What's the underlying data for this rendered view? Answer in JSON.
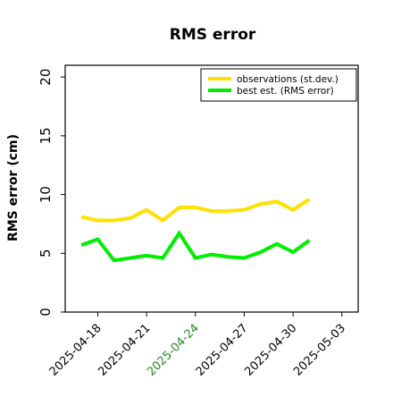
{
  "chart_data": {
    "type": "line",
    "title": "RMS error",
    "xlabel": "",
    "ylabel": "RMS error (cm)",
    "ylim": [
      0,
      21
    ],
    "yticks": [
      0,
      5,
      10,
      15,
      20
    ],
    "xlim": [
      "2025-04-16",
      "2025-05-04"
    ],
    "xticks": [
      "2025-04-18",
      "2025-04-21",
      "2025-04-24",
      "2025-04-27",
      "2025-04-30",
      "2025-05-03"
    ],
    "xtick_colors": [
      "#000000",
      "#000000",
      "#228B22",
      "#000000",
      "#000000",
      "#000000"
    ],
    "grid": false,
    "legend_position": "top-right",
    "x": [
      "2025-04-17",
      "2025-04-18",
      "2025-04-19",
      "2025-04-20",
      "2025-04-21",
      "2025-04-22",
      "2025-04-23",
      "2025-04-24",
      "2025-04-25",
      "2025-04-26",
      "2025-04-27",
      "2025-04-28",
      "2025-04-29",
      "2025-04-30",
      "2025-05-01"
    ],
    "series": [
      {
        "name": "observations (st.dev.)",
        "color": "#FFE000",
        "values": [
          8.1,
          7.8,
          7.8,
          8.0,
          8.7,
          7.8,
          8.9,
          8.9,
          8.6,
          8.6,
          8.7,
          9.2,
          9.4,
          8.7,
          9.6
        ]
      },
      {
        "name": "best est. (RMS error)",
        "color": "#00EE00",
        "values": [
          5.7,
          6.2,
          4.4,
          4.6,
          4.8,
          4.6,
          6.7,
          4.6,
          4.9,
          4.7,
          4.6,
          5.1,
          5.8,
          5.1,
          6.1
        ]
      }
    ]
  }
}
